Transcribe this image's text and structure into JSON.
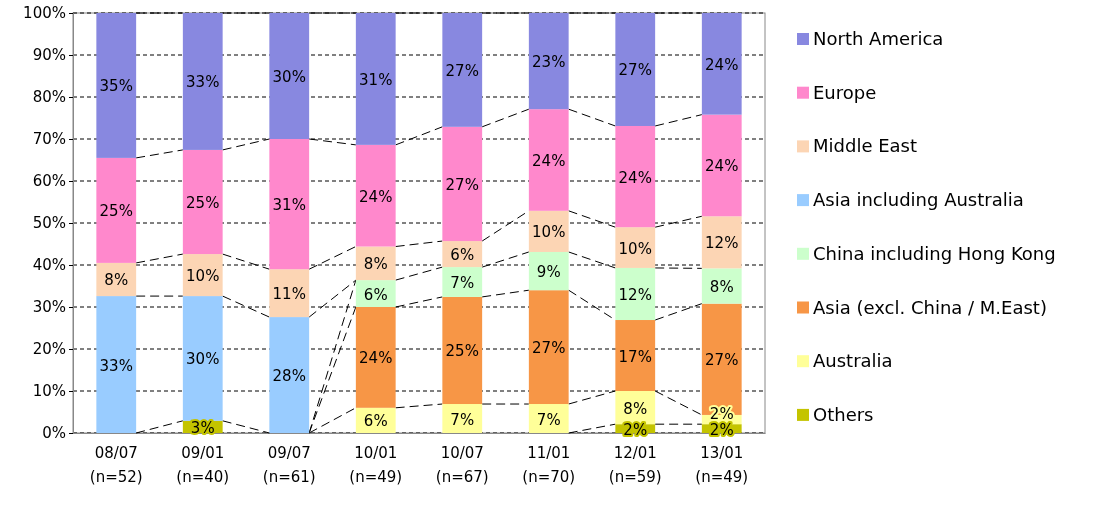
{
  "chart_data": {
    "type": "bar",
    "stacked": true,
    "categories": [
      "08/07\n(n=52)",
      "09/01\n(n=40)",
      "09/07\n(n=61)",
      "10/01\n(n=49)",
      "10/07\n(n=67)",
      "11/01\n(n=70)",
      "12/01\n(n=59)",
      "13/01\n(n=49)"
    ],
    "ylim": [
      0,
      100
    ],
    "yticks": [
      {
        "value": 0,
        "label": "0%"
      },
      {
        "value": 10,
        "label": "10%"
      },
      {
        "value": 20,
        "label": "20%"
      },
      {
        "value": 30,
        "label": "30%"
      },
      {
        "value": 40,
        "label": "40%"
      },
      {
        "value": 50,
        "label": "50%"
      },
      {
        "value": 60,
        "label": "60%"
      },
      {
        "value": 70,
        "label": "70%"
      },
      {
        "value": 80,
        "label": "80%"
      },
      {
        "value": 90,
        "label": "90%"
      },
      {
        "value": 100,
        "label": "100%"
      }
    ],
    "grid": "y",
    "legend": "right",
    "series": [
      {
        "name": "Others",
        "color": "#c4c400",
        "values": [
          null,
          2.9,
          null,
          null,
          null,
          null,
          2.1,
          2.1
        ],
        "value_labels": [
          null,
          "3%",
          null,
          null,
          null,
          null,
          "2%",
          "2%"
        ]
      },
      {
        "name": "Australia",
        "color": "#ffff99",
        "values": [
          null,
          null,
          null,
          6.0,
          6.9,
          6.9,
          7.9,
          2.2
        ],
        "value_labels": [
          null,
          null,
          null,
          "6%",
          "7%",
          "7%",
          "8%",
          "2%"
        ]
      },
      {
        "name": "Asia (excl. China / M.East)",
        "color": "#f79646",
        "values": [
          null,
          null,
          null,
          24.0,
          25.5,
          27.1,
          16.9,
          26.5
        ],
        "value_labels": [
          null,
          null,
          null,
          "24%",
          "25%",
          "27%",
          "17%",
          "27%"
        ]
      },
      {
        "name": "China including Hong Kong",
        "color": "#ccffcc",
        "values": [
          null,
          null,
          null,
          6.4,
          7.1,
          9.1,
          12.4,
          8.4
        ],
        "value_labels": [
          null,
          null,
          null,
          "6%",
          "7%",
          "9%",
          "12%",
          "8%"
        ]
      },
      {
        "name": "Asia including Australia",
        "color": "#99ccff",
        "values": [
          32.6,
          29.7,
          27.6,
          null,
          null,
          null,
          null,
          null
        ],
        "value_labels": [
          "33%",
          "30%",
          "28%",
          null,
          null,
          null,
          null,
          null
        ]
      },
      {
        "name": "Middle East",
        "color": "#fcd5b4",
        "values": [
          7.9,
          10.0,
          11.4,
          8.0,
          6.2,
          9.8,
          9.7,
          12.4
        ],
        "value_labels": [
          "8%",
          "10%",
          "11%",
          "8%",
          "6%",
          "10%",
          "10%",
          "12%"
        ]
      },
      {
        "name": "Europe",
        "color": "#ff88cc",
        "values": [
          25.0,
          24.8,
          31.0,
          24.2,
          27.2,
          24.2,
          24.1,
          24.2
        ],
        "value_labels": [
          "25%",
          "25%",
          "31%",
          "24%",
          "27%",
          "24%",
          "24%",
          "24%"
        ]
      },
      {
        "name": "North America",
        "color": "#8888e0",
        "values": [
          34.5,
          32.6,
          30.0,
          31.4,
          27.1,
          22.9,
          26.9,
          24.2
        ],
        "value_labels": [
          "35%",
          "33%",
          "30%",
          "31%",
          "27%",
          "23%",
          "27%",
          "24%"
        ]
      }
    ]
  }
}
